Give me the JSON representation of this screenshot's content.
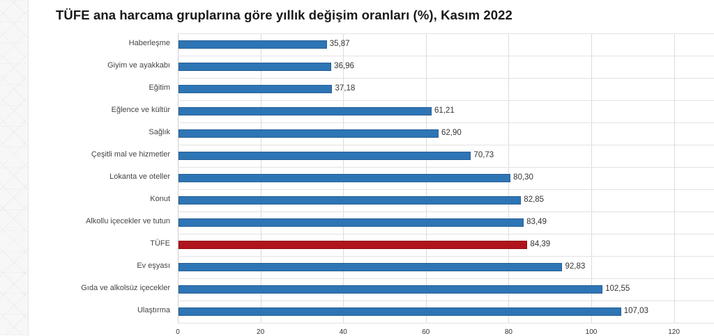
{
  "title": "TÜFE ana harcama gruplarına göre yıllık değişim oranları (%), Kasım 2022",
  "colors": {
    "bar": "#2e75b6",
    "highlight": "#b0141c",
    "grid": "#dcdcdc"
  },
  "chart_data": {
    "type": "bar",
    "orientation": "horizontal",
    "title": "TÜFE ana harcama gruplarına göre yıllık değişim oranları (%), Kasım 2022",
    "xlabel": "",
    "ylabel": "",
    "xlim": [
      0,
      120
    ],
    "grid": true,
    "legend": null,
    "categories": [
      "Haberleşme",
      "Giyim ve ayakkabı",
      "Eğitim",
      "Eğlence ve kültür",
      "Sağlık",
      "Çeşitli mal ve hizmetler",
      "Lokanta ve oteller",
      "Konut",
      "Alkollu içecekler ve tutun",
      "TÜFE",
      "Ev eşyası",
      "Gıda ve alkolsüz içecekler",
      "Ulaştırma"
    ],
    "values": [
      35.87,
      36.96,
      37.18,
      61.21,
      62.9,
      70.73,
      80.3,
      82.85,
      83.49,
      84.39,
      92.83,
      102.55,
      107.03
    ],
    "value_labels": [
      "35,87",
      "36,96",
      "37,18",
      "61,21",
      "62,90",
      "70,73",
      "80,30",
      "82,85",
      "83,49",
      "84,39",
      "92,83",
      "102,55",
      "107,03"
    ],
    "highlight_category": "TÜFE",
    "x_ticks": [
      0,
      20,
      40,
      60,
      80,
      100,
      120
    ]
  }
}
